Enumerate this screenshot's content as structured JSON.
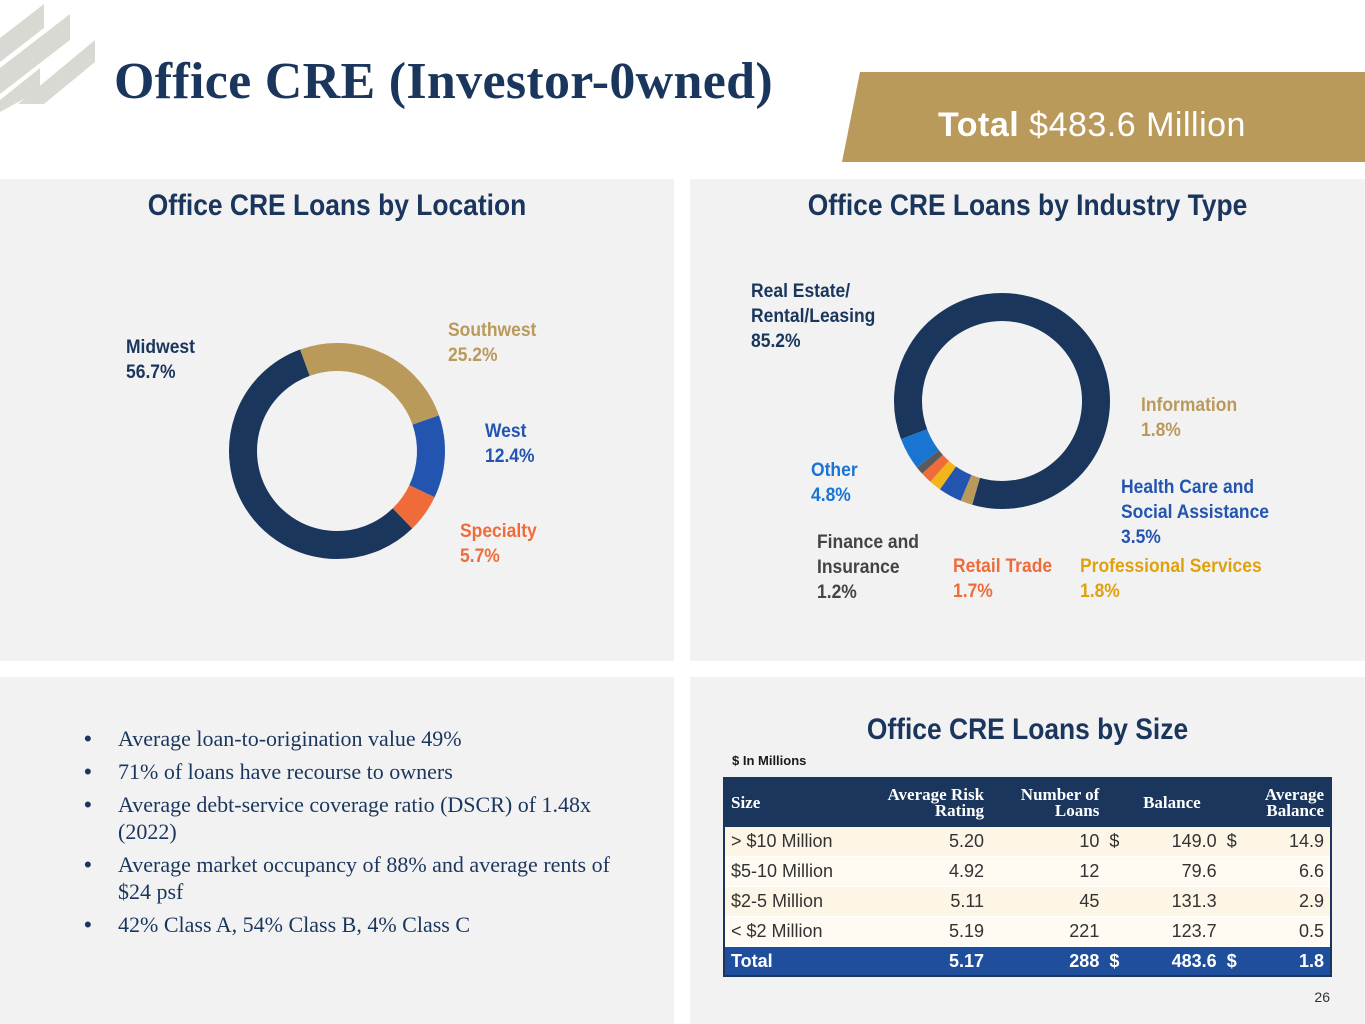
{
  "header": {
    "title": "Office CRE (Investor-0wned)",
    "total_label": "Total",
    "total_value": "$483.6 Million"
  },
  "colors": {
    "navy": "#1a365d",
    "gold": "#b99a5b",
    "blue": "#2355b0",
    "orange": "#ef6c3a",
    "light_blue": "#1a74d2",
    "amber": "#e0a10e",
    "gray_text": "#444444"
  },
  "location": {
    "title": "Office CRE Loans by Location",
    "labels": [
      {
        "name": "Midwest",
        "pct": "56.7%"
      },
      {
        "name": "Southwest",
        "pct": "25.2%"
      },
      {
        "name": "West",
        "pct": "12.4%"
      },
      {
        "name": "Specialty",
        "pct": "5.7%"
      }
    ]
  },
  "industry": {
    "title": "Office CRE Loans by Industry Type",
    "labels": [
      {
        "line1": "Real Estate/",
        "line2": "Rental/Leasing",
        "pct": "85.2%"
      },
      {
        "line1": "Information",
        "pct": "1.8%"
      },
      {
        "line1": "Health Care and",
        "line2": "Social Assistance",
        "pct": "3.5%"
      },
      {
        "line1": "Professional Services",
        "pct": "1.8%"
      },
      {
        "line1": "Retail Trade",
        "pct": "1.7%"
      },
      {
        "line1": "Finance and",
        "line2": "Insurance",
        "pct": "1.2%"
      },
      {
        "line1": "Other",
        "pct": "4.8%"
      }
    ]
  },
  "bullets": [
    "Average loan-to-origination value 49%",
    "71% of loans have recourse to owners",
    "Average debt-service coverage ratio (DSCR) of 1.48x (2022)",
    "Average market occupancy of 88% and average rents of $24 psf",
    "42% Class A, 54% Class B, 4% Class C"
  ],
  "size_table": {
    "title": "Office CRE Loans by Size",
    "note": "$ In Millions",
    "headers": {
      "size": "Size",
      "risk": "Average Risk Rating",
      "count": "Number of Loans",
      "balance": "Balance",
      "avg_balance": "Average Balance"
    },
    "rows": [
      {
        "size": "> $10 Million",
        "risk": "5.20",
        "count": "10",
        "bal_cur": "$",
        "balance": "149.0",
        "avg_cur": "$",
        "avg_balance": "14.9"
      },
      {
        "size": "$5-10 Million",
        "risk": "4.92",
        "count": "12",
        "bal_cur": "",
        "balance": "79.6",
        "avg_cur": "",
        "avg_balance": "6.6"
      },
      {
        "size": "$2-5 Million",
        "risk": "5.11",
        "count": "45",
        "bal_cur": "",
        "balance": "131.3",
        "avg_cur": "",
        "avg_balance": "2.9"
      },
      {
        "size": "< $2 Million",
        "risk": "5.19",
        "count": "221",
        "bal_cur": "",
        "balance": "123.7",
        "avg_cur": "",
        "avg_balance": "0.5"
      }
    ],
    "total": {
      "size": "Total",
      "risk": "5.17",
      "count": "288",
      "bal_cur": "$",
      "balance": "483.6",
      "avg_cur": "$",
      "avg_balance": "1.8"
    }
  },
  "page_number": "26",
  "chart_data": [
    {
      "type": "pie",
      "title": "Office CRE Loans by Location",
      "categories": [
        "Midwest",
        "Southwest",
        "West",
        "Specialty"
      ],
      "values": [
        56.7,
        25.2,
        12.4,
        5.7
      ],
      "colors": [
        "#1a365d",
        "#b99a5b",
        "#2355b0",
        "#ef6c3a"
      ],
      "start_category": "Southwest",
      "order_clockwise": [
        "Southwest",
        "West",
        "Specialty",
        "Midwest"
      ]
    },
    {
      "type": "pie",
      "title": "Office CRE Loans by Industry Type",
      "categories": [
        "Real Estate/Rental/Leasing",
        "Information",
        "Health Care and Social Assistance",
        "Professional Services",
        "Retail Trade",
        "Finance and Insurance",
        "Other"
      ],
      "values": [
        85.2,
        1.8,
        3.5,
        1.8,
        1.7,
        1.2,
        4.8
      ],
      "colors": [
        "#1a365d",
        "#b99a5b",
        "#2355b0",
        "#f2b51c",
        "#ef6c3a",
        "#5a5a5a",
        "#1a74d2"
      ],
      "order_clockwise": [
        "Real Estate/Rental/Leasing",
        "Information",
        "Health Care and Social Assistance",
        "Professional Services",
        "Retail Trade",
        "Finance and Insurance",
        "Other"
      ]
    }
  ]
}
